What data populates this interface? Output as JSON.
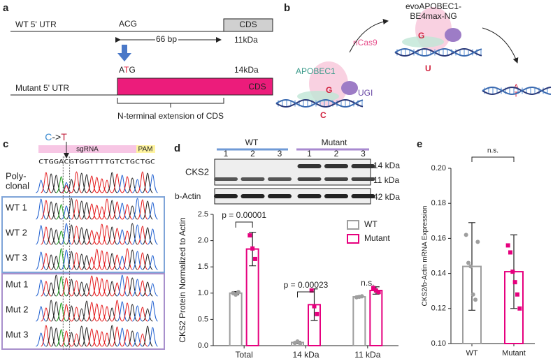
{
  "panel_a": {
    "label": "a",
    "wt_label": "WT 5' UTR",
    "acg": "ACG",
    "cds": "CDS",
    "distance": "66 bp",
    "wt_kda": "11kDa",
    "atg_a": "A",
    "atg_t": "T",
    "atg_g": "G",
    "mut_kda": "14kDa",
    "mutant_label": "Mutant 5' UTR",
    "mut_cds": "CDS",
    "extension": "N-terminal extension of CDS"
  },
  "panel_b": {
    "label": "b",
    "ncas9": "nCas9",
    "apobec": "APOBEC1",
    "ugi": "UGI",
    "editor_line1": "evoAPOBEC1-",
    "editor_line2": "BE4max-NG",
    "g1": "G",
    "c1": "C",
    "g2": "G",
    "u2": "U",
    "a3": "A",
    "t3": "T"
  },
  "panel_c": {
    "label": "c",
    "mut_from": "C",
    "mut_arrow": "->",
    "mut_to": "T",
    "sgrna": "sgRNA",
    "pam": "PAM",
    "sequence": "CTGGACGTGGTTTTGTCTGCTGC",
    "rows": [
      [
        "Poly-",
        "clonal"
      ],
      [
        "WT 1"
      ],
      [
        "WT 2"
      ],
      [
        "WT 3"
      ],
      [
        "Mut 1"
      ],
      [
        "Mut 2"
      ],
      [
        "Mut 3"
      ]
    ]
  },
  "panel_d": {
    "label": "d",
    "wt": "WT",
    "mutant": "Mutant",
    "lanes": [
      "1",
      "2",
      "3",
      "1",
      "2",
      "3"
    ],
    "cks2": "CKS2",
    "actin": "b-Actin",
    "kda14": "14 kDa",
    "kda11": "11 kDa",
    "kda42": "42 kDa"
  },
  "panel_e": {
    "label": "e"
  },
  "chart_data": [
    {
      "type": "bar",
      "ylabel": "CKS2 Protein Normalized to Actin",
      "categories": [
        "Total",
        "14 kDa",
        "11 kDa"
      ],
      "series": [
        {
          "name": "WT",
          "color": "#9e9e9e",
          "values": [
            1.0,
            0.06,
            0.93
          ],
          "errors": [
            0.03,
            0.02,
            0.02
          ],
          "points": [
            [
              1.0,
              0.97,
              1.02
            ],
            [
              0.05,
              0.08,
              0.04
            ],
            [
              0.92,
              0.93,
              0.94
            ]
          ]
        },
        {
          "name": "Mutant",
          "color": "#e6007e",
          "values": [
            1.84,
            0.78,
            1.05
          ],
          "errors": [
            0.32,
            0.3,
            0.07
          ],
          "points": [
            [
              2.1,
              1.85,
              1.65
            ],
            [
              1.05,
              0.75,
              0.6
            ],
            [
              1.1,
              1.05,
              1.02
            ]
          ]
        }
      ],
      "annotations": [
        "p = 0.00001",
        "p = 0.00023",
        "n.s."
      ],
      "ylim": [
        0,
        2.5
      ],
      "yticks": [
        {
          "value": 0,
          "label": "0.0"
        },
        {
          "value": 0.5,
          "label": "0.5"
        },
        {
          "value": 1,
          "label": "1.0"
        },
        {
          "value": 1.5,
          "label": "1.5"
        },
        {
          "value": 2,
          "label": "2.0"
        },
        {
          "value": 2.5,
          "label": "2.5"
        }
      ],
      "legend": "top-right"
    },
    {
      "type": "bar",
      "ylabel": "CKS2/b-Actin mRNA Expression",
      "categories": [
        "WT",
        "Mutant"
      ],
      "series": [
        {
          "name": "Expression",
          "colors": [
            "#9e9e9e",
            "#e6007e"
          ],
          "values": [
            0.144,
            0.141
          ],
          "errors": [
            0.025,
            0.021
          ],
          "points": [
            [
              0.162,
              0.146,
              0.144,
              0.128,
              0.125,
              0.158
            ],
            [
              0.156,
              0.152,
              0.141,
              0.135,
              0.128,
              0.12
            ]
          ]
        }
      ],
      "annotations": [
        "n.s."
      ],
      "ylim": [
        0.1,
        0.2
      ],
      "yticks": [
        {
          "value": 0.1,
          "label": "0.10"
        },
        {
          "value": 0.12,
          "label": "0.12"
        },
        {
          "value": 0.14,
          "label": "0.14"
        },
        {
          "value": 0.16,
          "label": "0.16"
        },
        {
          "value": 0.18,
          "label": "0.18"
        },
        {
          "value": 0.2,
          "label": "0.20"
        }
      ]
    }
  ]
}
